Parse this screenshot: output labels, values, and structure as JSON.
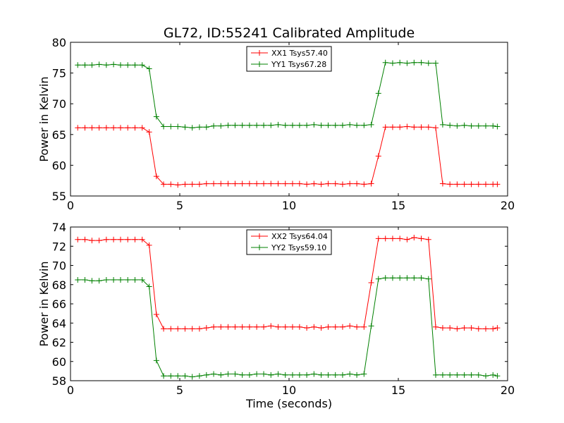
{
  "figure_title": "GL72, ID:55241 Calibrated Amplitude",
  "xlabel": "Time (seconds)",
  "chart_data": [
    {
      "type": "line",
      "title": "GL72, ID:55241 Calibrated Amplitude",
      "xlabel": "",
      "ylabel": "Power in Kelvin",
      "xlim": [
        0,
        20
      ],
      "ylim": [
        55,
        80
      ],
      "xticks": [
        0,
        5,
        10,
        15,
        20
      ],
      "yticks": [
        55,
        60,
        65,
        70,
        75,
        80
      ],
      "grid": false,
      "legend_position": "top-center",
      "x": [
        0.33,
        0.66,
        0.98,
        1.31,
        1.64,
        1.97,
        2.29,
        2.62,
        2.95,
        3.28,
        3.6,
        3.93,
        4.26,
        4.59,
        4.91,
        5.24,
        5.57,
        5.9,
        6.22,
        6.55,
        6.88,
        7.21,
        7.53,
        7.86,
        8.19,
        8.52,
        8.84,
        9.17,
        9.5,
        9.83,
        10.16,
        10.48,
        10.81,
        11.14,
        11.47,
        11.79,
        12.12,
        12.45,
        12.78,
        13.1,
        13.43,
        13.76,
        14.09,
        14.41,
        14.74,
        15.07,
        15.4,
        15.72,
        16.05,
        16.38,
        16.71,
        17.03,
        17.36,
        17.69,
        18.02,
        18.34,
        18.67,
        19.0,
        19.33,
        19.53
      ],
      "series": [
        {
          "name": "XX1 Tsys57.40",
          "color": "#ff0000",
          "values": [
            66.1,
            66.1,
            66.1,
            66.1,
            66.1,
            66.1,
            66.1,
            66.1,
            66.1,
            66.1,
            65.4,
            58.2,
            56.9,
            56.9,
            56.8,
            56.9,
            56.9,
            56.9,
            57.0,
            57.0,
            57.0,
            57.0,
            57.0,
            57.0,
            57.0,
            57.0,
            57.0,
            57.0,
            57.0,
            57.0,
            57.0,
            57.0,
            56.9,
            57.0,
            56.9,
            57.0,
            57.0,
            56.9,
            57.0,
            57.0,
            56.9,
            57.0,
            61.5,
            66.2,
            66.2,
            66.2,
            66.3,
            66.2,
            66.2,
            66.2,
            66.1,
            57.0,
            56.9,
            56.9,
            56.9,
            56.9,
            56.9,
            56.9,
            56.9,
            56.9
          ]
        },
        {
          "name": "YY1 Tsys67.28",
          "color": "#008000",
          "values": [
            76.3,
            76.3,
            76.3,
            76.4,
            76.3,
            76.4,
            76.3,
            76.3,
            76.3,
            76.3,
            75.7,
            67.9,
            66.3,
            66.3,
            66.3,
            66.2,
            66.1,
            66.2,
            66.2,
            66.4,
            66.4,
            66.5,
            66.5,
            66.5,
            66.5,
            66.5,
            66.5,
            66.5,
            66.6,
            66.5,
            66.5,
            66.5,
            66.5,
            66.6,
            66.5,
            66.5,
            66.5,
            66.5,
            66.6,
            66.5,
            66.5,
            66.6,
            71.7,
            76.7,
            76.6,
            76.7,
            76.6,
            76.7,
            76.7,
            76.6,
            76.6,
            66.6,
            66.5,
            66.4,
            66.5,
            66.4,
            66.4,
            66.4,
            66.4,
            66.3
          ]
        }
      ]
    },
    {
      "type": "line",
      "title": "",
      "xlabel": "Time (seconds)",
      "ylabel": "Power in Kelvin",
      "xlim": [
        0,
        20
      ],
      "ylim": [
        58,
        74
      ],
      "xticks": [
        0,
        5,
        10,
        15,
        20
      ],
      "yticks": [
        58,
        60,
        62,
        64,
        66,
        68,
        70,
        72,
        74
      ],
      "grid": false,
      "legend_position": "top-center",
      "x": [
        0.33,
        0.66,
        0.98,
        1.31,
        1.64,
        1.97,
        2.29,
        2.62,
        2.95,
        3.28,
        3.6,
        3.93,
        4.26,
        4.59,
        4.91,
        5.24,
        5.57,
        5.9,
        6.22,
        6.55,
        6.88,
        7.21,
        7.53,
        7.86,
        8.19,
        8.52,
        8.84,
        9.17,
        9.5,
        9.83,
        10.16,
        10.48,
        10.81,
        11.14,
        11.47,
        11.79,
        12.12,
        12.45,
        12.78,
        13.1,
        13.43,
        13.76,
        14.09,
        14.41,
        14.74,
        15.07,
        15.4,
        15.72,
        16.05,
        16.38,
        16.71,
        17.03,
        17.36,
        17.69,
        18.02,
        18.34,
        18.67,
        19.0,
        19.33,
        19.53
      ],
      "series": [
        {
          "name": "XX2 Tsys64.04",
          "color": "#ff0000",
          "values": [
            72.7,
            72.7,
            72.6,
            72.6,
            72.7,
            72.7,
            72.7,
            72.7,
            72.7,
            72.7,
            72.1,
            64.9,
            63.4,
            63.4,
            63.4,
            63.4,
            63.4,
            63.4,
            63.5,
            63.6,
            63.6,
            63.6,
            63.6,
            63.6,
            63.6,
            63.6,
            63.6,
            63.7,
            63.6,
            63.6,
            63.6,
            63.6,
            63.5,
            63.6,
            63.5,
            63.6,
            63.6,
            63.6,
            63.7,
            63.6,
            63.6,
            68.2,
            72.8,
            72.8,
            72.8,
            72.8,
            72.7,
            72.9,
            72.8,
            72.7,
            63.6,
            63.5,
            63.5,
            63.4,
            63.5,
            63.5,
            63.4,
            63.4,
            63.4,
            63.5
          ]
        },
        {
          "name": "YY2 Tsys59.10",
          "color": "#008000",
          "values": [
            68.5,
            68.5,
            68.4,
            68.4,
            68.5,
            68.5,
            68.5,
            68.5,
            68.5,
            68.5,
            67.8,
            60.1,
            58.5,
            58.5,
            58.5,
            58.5,
            58.4,
            58.5,
            58.6,
            58.7,
            58.6,
            58.7,
            58.7,
            58.6,
            58.6,
            58.7,
            58.7,
            58.6,
            58.7,
            58.6,
            58.6,
            58.6,
            58.6,
            58.7,
            58.6,
            58.6,
            58.6,
            58.6,
            58.7,
            58.6,
            58.7,
            63.7,
            68.6,
            68.7,
            68.7,
            68.7,
            68.7,
            68.7,
            68.7,
            68.6,
            58.6,
            58.6,
            58.6,
            58.6,
            58.6,
            58.6,
            58.6,
            58.5,
            58.6,
            58.5
          ]
        }
      ]
    }
  ]
}
